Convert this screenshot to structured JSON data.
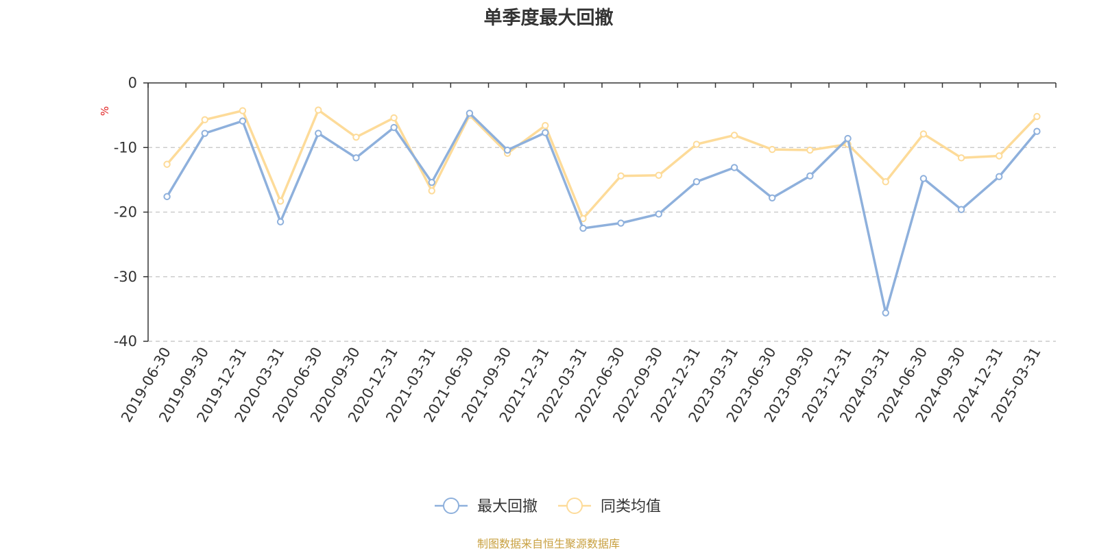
{
  "chart_data": {
    "type": "line",
    "title": "单季度最大回撤",
    "ylabel": "%",
    "ylim": [
      -40,
      0
    ],
    "yticks": [
      0,
      -10,
      -20,
      -30,
      -40
    ],
    "grid": true,
    "legend_position": "bottom-center",
    "categories": [
      "2019-06-30",
      "2019-09-30",
      "2019-12-31",
      "2020-03-31",
      "2020-06-30",
      "2020-09-30",
      "2020-12-31",
      "2021-03-31",
      "2021-06-30",
      "2021-09-30",
      "2021-12-31",
      "2022-03-31",
      "2022-06-30",
      "2022-09-30",
      "2022-12-31",
      "2023-03-31",
      "2023-06-30",
      "2023-09-30",
      "2023-12-31",
      "2024-03-31",
      "2024-06-30",
      "2024-09-30",
      "2024-12-31",
      "2025-03-31"
    ],
    "series": [
      {
        "name": "最大回撤",
        "color": "#8eb0dc",
        "values": [
          -17.6,
          -7.8,
          -5.9,
          -21.5,
          -7.8,
          -11.6,
          -6.9,
          -15.4,
          -4.7,
          -10.4,
          -7.7,
          -22.5,
          -21.7,
          -20.3,
          -15.3,
          -13.1,
          -17.8,
          -14.4,
          -8.6,
          -35.6,
          -14.8,
          -19.6,
          -14.5,
          -7.5
        ]
      },
      {
        "name": "同类均值",
        "color": "#fddb99",
        "values": [
          -12.6,
          -5.7,
          -4.3,
          -18.3,
          -4.2,
          -8.4,
          -5.4,
          -16.7,
          -5.0,
          -10.9,
          -6.6,
          -21.0,
          -14.4,
          -14.3,
          -9.5,
          -8.1,
          -10.3,
          -10.4,
          -9.5,
          -15.3,
          -7.9,
          -11.6,
          -11.3,
          -5.2
        ]
      }
    ]
  },
  "source_text": "制图数据来自恒生聚源数据库"
}
